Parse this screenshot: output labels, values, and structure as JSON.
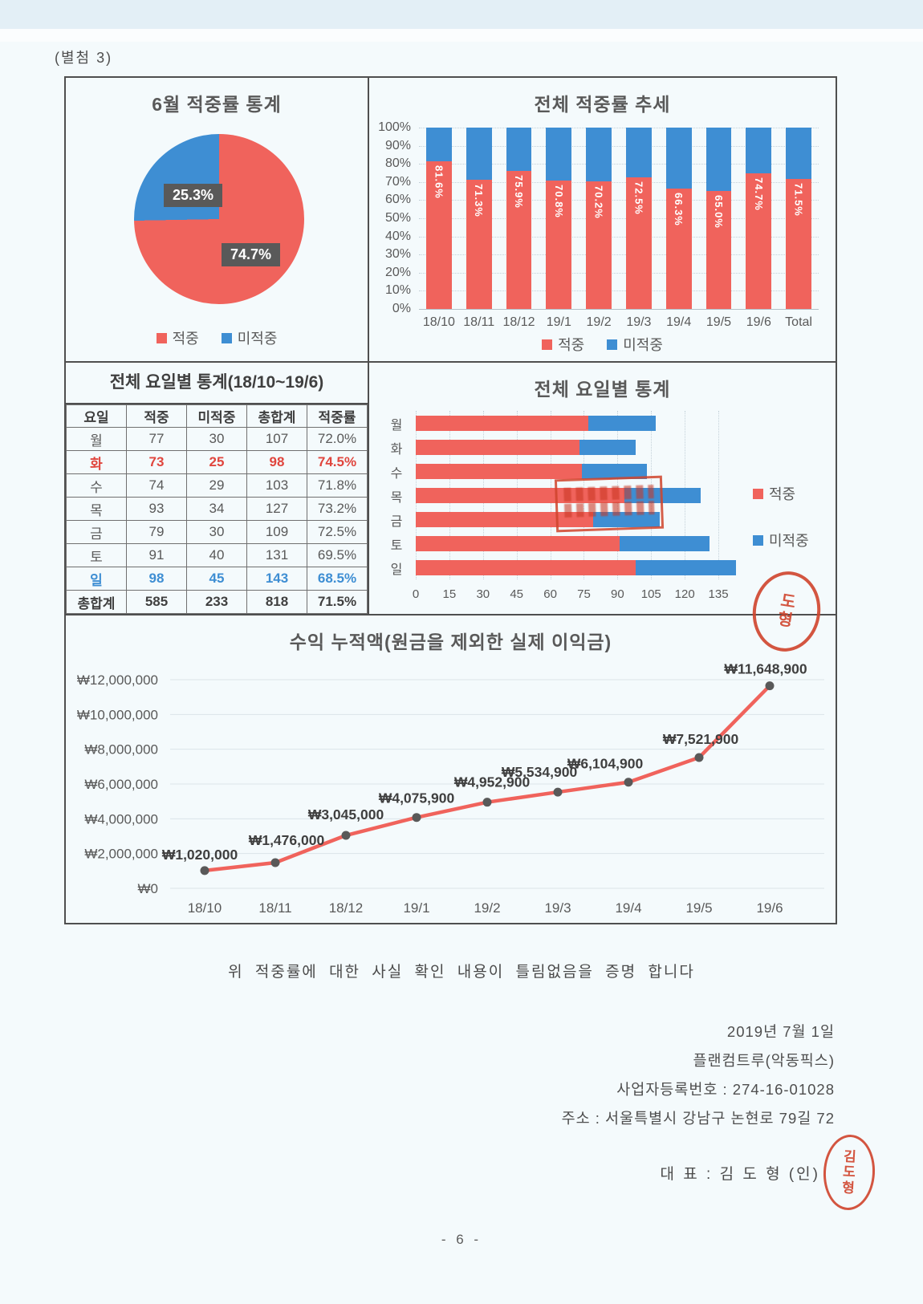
{
  "page": {
    "annex": "(별첨 3)",
    "certification": "위 적중률에 대한 사실 확인 내용이 틀림없음을 증명 합니다",
    "signoff": {
      "date": "2019년 7월 1일",
      "company": "플랜컴트루(악동픽스)",
      "business_number": "사업자등록번호 : 274-16-01028",
      "address": "주소 : 서울특별시 강남구 논현로 79길 72",
      "representative": "대 표 : 김 도 형  (인)"
    },
    "page_number": "- 6 -"
  },
  "colors": {
    "hit": "#f0635c",
    "miss": "#3e8ed3",
    "stamp": "#d0442c",
    "text": "#595959"
  },
  "legend": {
    "hit": "적중",
    "miss": "미적중"
  },
  "stamps": {
    "name_chars": [
      "김",
      "도",
      "형"
    ],
    "corner_chars": [
      "도",
      "형"
    ]
  },
  "chart_data": [
    {
      "id": "june-pie",
      "type": "pie",
      "title": "6월 적중률 통계",
      "labels": [
        "적중",
        "미적중"
      ],
      "values": [
        74.7,
        25.3
      ],
      "value_labels": [
        "74.7%",
        "25.3%"
      ],
      "colors": [
        "#f0635c",
        "#3e8ed3"
      ],
      "legend_position": "bottom"
    },
    {
      "id": "overall-trend",
      "type": "bar",
      "subtype": "stacked-100-percent",
      "title": "전체 적중률 추세",
      "categories": [
        "18/10",
        "18/11",
        "18/12",
        "19/1",
        "19/2",
        "19/3",
        "19/4",
        "19/5",
        "19/6",
        "Total"
      ],
      "series": [
        {
          "name": "적중",
          "values": [
            81.6,
            71.3,
            75.9,
            70.8,
            70.2,
            72.5,
            66.3,
            65.0,
            74.7,
            71.5
          ]
        },
        {
          "name": "미적중",
          "values": [
            18.4,
            28.7,
            24.1,
            29.2,
            29.8,
            27.5,
            33.7,
            35.0,
            25.3,
            28.5
          ]
        }
      ],
      "bar_labels": [
        "81.6%",
        "71.3%",
        "75.9%",
        "70.8%",
        "70.2%",
        "72.5%",
        "66.3%",
        "65.0%",
        "74.7%",
        "71.5%"
      ],
      "y_ticks": [
        "100%",
        "90%",
        "80%",
        "70%",
        "60%",
        "50%",
        "40%",
        "30%",
        "20%",
        "10%",
        "0%"
      ],
      "ylim": [
        0,
        100
      ],
      "grid": true,
      "legend_position": "bottom"
    },
    {
      "id": "weekday-table",
      "type": "table",
      "title": "전체 요일별 통계(18/10~19/6)",
      "headers": [
        "요일",
        "적중",
        "미적중",
        "총합계",
        "적중률"
      ],
      "rows": [
        {
          "cells": [
            "월",
            "77",
            "30",
            "107",
            "72.0%"
          ],
          "highlight": null
        },
        {
          "cells": [
            "화",
            "73",
            "25",
            "98",
            "74.5%"
          ],
          "highlight": "red"
        },
        {
          "cells": [
            "수",
            "74",
            "29",
            "103",
            "71.8%"
          ],
          "highlight": null
        },
        {
          "cells": [
            "목",
            "93",
            "34",
            "127",
            "73.2%"
          ],
          "highlight": null
        },
        {
          "cells": [
            "금",
            "79",
            "30",
            "109",
            "72.5%"
          ],
          "highlight": null
        },
        {
          "cells": [
            "토",
            "91",
            "40",
            "131",
            "69.5%"
          ],
          "highlight": null
        },
        {
          "cells": [
            "일",
            "98",
            "45",
            "143",
            "68.5%"
          ],
          "highlight": "blue"
        },
        {
          "cells": [
            "총합계",
            "585",
            "233",
            "818",
            "71.5%"
          ],
          "highlight": "total"
        }
      ]
    },
    {
      "id": "weekday-bars",
      "type": "bar",
      "subtype": "horizontal-stacked",
      "title": "전체 요일별 통계",
      "categories": [
        "월",
        "화",
        "수",
        "목",
        "금",
        "토",
        "일"
      ],
      "series": [
        {
          "name": "적중",
          "values": [
            77,
            73,
            74,
            93,
            79,
            91,
            98
          ]
        },
        {
          "name": "미적중",
          "values": [
            30,
            25,
            29,
            34,
            30,
            40,
            45
          ]
        }
      ],
      "x_ticks": [
        0,
        15,
        30,
        45,
        60,
        75,
        90,
        105,
        120,
        135
      ],
      "xlim": [
        0,
        145
      ],
      "grid": true,
      "legend_position": "right"
    },
    {
      "id": "profit-line",
      "type": "line",
      "title": "수익 누적액(원금을 제외한 실제 이익금)",
      "x": [
        "18/10",
        "18/11",
        "18/12",
        "19/1",
        "19/2",
        "19/3",
        "19/4",
        "19/5",
        "19/6"
      ],
      "values": [
        1020000,
        1476000,
        3045000,
        4075900,
        4952900,
        5534900,
        6104900,
        7521900,
        11648900
      ],
      "point_labels": [
        "₩1,020,000",
        "₩1,476,000",
        "₩3,045,000",
        "₩4,075,900",
        "₩4,952,900",
        "₩5,534,900",
        "₩6,104,900",
        "₩7,521,900",
        "₩11,648,900"
      ],
      "y_ticks": [
        "₩12,000,000",
        "₩10,000,000",
        "₩8,000,000",
        "₩6,000,000",
        "₩4,000,000",
        "₩2,000,000",
        "₩0"
      ],
      "ylim": [
        0,
        12000000
      ],
      "grid": true,
      "line_color": "#f0635c",
      "marker_color": "#595959"
    }
  ]
}
